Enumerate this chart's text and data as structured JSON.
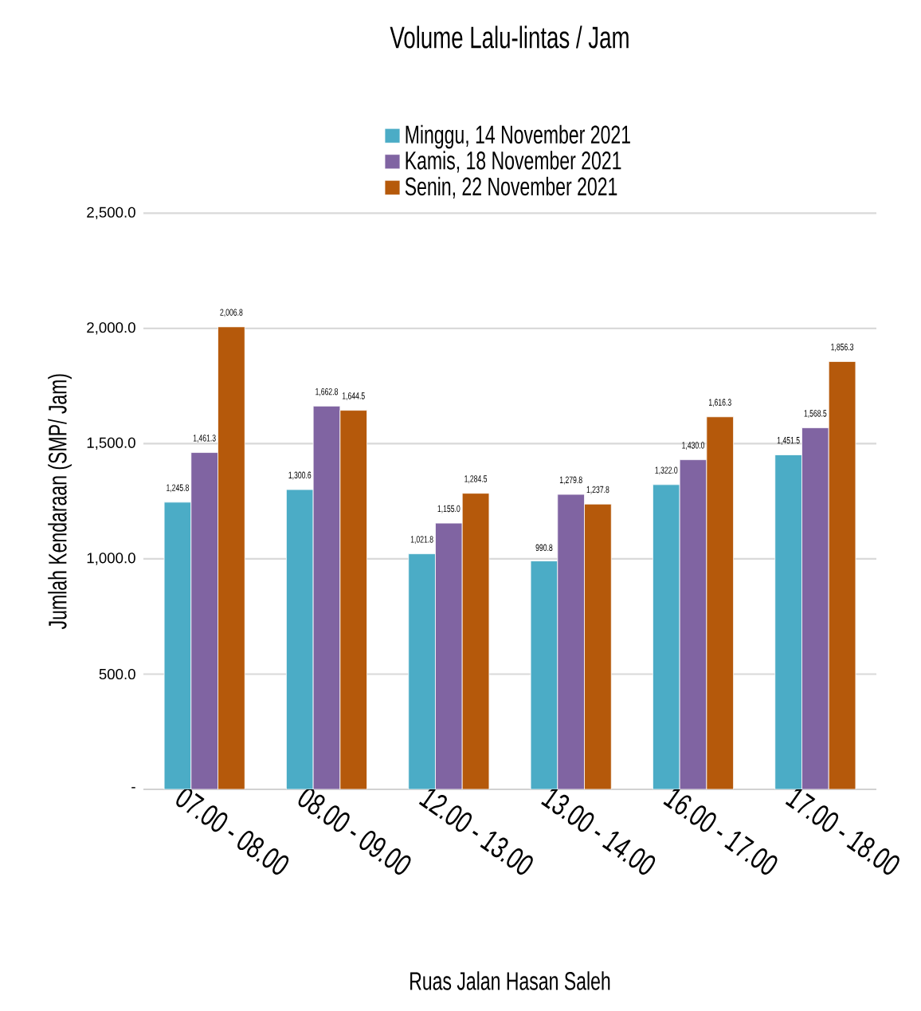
{
  "chart_data": {
    "type": "bar",
    "title": "Volume Lalu-lintas / Jam",
    "xlabel": "Ruas Jalan Hasan Saleh",
    "ylabel": "Jumlah Kendaraan (SMP/ Jam)",
    "categories": [
      "07.00 - 08.00",
      "08.00 - 09.00",
      "12.00 - 13.00",
      "13.00 - 14.00",
      "16.00 - 17.00",
      "17.00 - 18.00"
    ],
    "series": [
      {
        "name": "Minggu, 14 November 2021",
        "color": "#4bacc6",
        "values": [
          1245.8,
          1300.6,
          1021.8,
          990.8,
          1322.0,
          1451.5
        ],
        "value_labels": [
          "1,245.8",
          "1,300.6",
          "1,021.8",
          "990.8",
          "1,322.0",
          "1,451.5"
        ]
      },
      {
        "name": "Kamis, 18 November 2021",
        "color": "#8064a2",
        "values": [
          1461.3,
          1662.8,
          1155.0,
          1279.8,
          1430.0,
          1568.5
        ],
        "value_labels": [
          "1,461.3",
          "1,662.8",
          "1,155.0",
          "1,279.8",
          "1,430.0",
          "1,568.5"
        ]
      },
      {
        "name": "Senin, 22 November 2021",
        "color": "#b5590b",
        "values": [
          2006.8,
          1644.5,
          1284.5,
          1237.8,
          1616.3,
          1856.3
        ],
        "value_labels": [
          "2,006.8",
          "1,644.5",
          "1,284.5",
          "1,237.8",
          "1,616.3",
          "1,856.3"
        ]
      }
    ],
    "ylim": [
      0,
      2500
    ],
    "yticks": [
      {
        "value": 0,
        "label": "-"
      },
      {
        "value": 500,
        "label": "500.0"
      },
      {
        "value": 1000,
        "label": "1,000.0"
      },
      {
        "value": 1500,
        "label": "1,500.0"
      },
      {
        "value": 2000,
        "label": "2,000.0"
      },
      {
        "value": 2500,
        "label": "2,500.0"
      }
    ],
    "grid": "y",
    "legend": "top"
  }
}
